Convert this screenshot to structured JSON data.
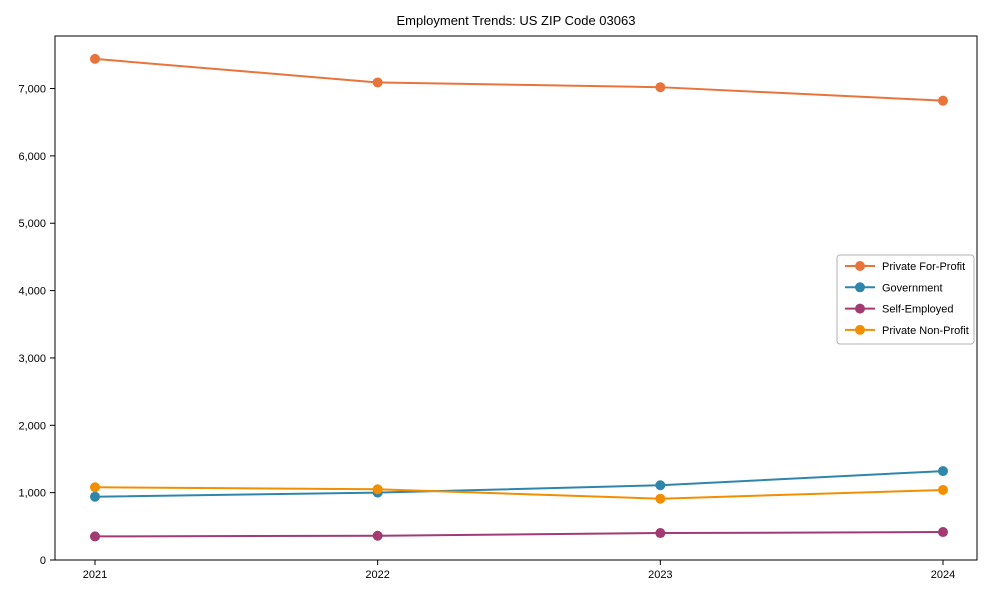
{
  "chart_data": {
    "type": "line",
    "title": "Employment Trends: US ZIP Code 03063",
    "xlabel": "",
    "ylabel": "",
    "x": [
      2021,
      2022,
      2023,
      2024
    ],
    "x_tick_labels": [
      "2021",
      "2022",
      "2023",
      "2024"
    ],
    "y_ticks": [
      0,
      1000,
      2000,
      3000,
      4000,
      5000,
      6000,
      7000
    ],
    "y_tick_labels": [
      "0",
      "1,000",
      "2,000",
      "3,000",
      "4,000",
      "5,000",
      "6,000",
      "7,000"
    ],
    "ylim": [
      0,
      7780
    ],
    "grid": false,
    "legend_position": "center-right",
    "marker": "circle",
    "series": [
      {
        "name": "Private For-Profit",
        "color": "#E8743B",
        "values": [
          7440,
          7090,
          7020,
          6820
        ]
      },
      {
        "name": "Government",
        "color": "#2E86AB",
        "values": [
          940,
          1000,
          1110,
          1320
        ]
      },
      {
        "name": "Self-Employed",
        "color": "#A23B72",
        "values": [
          350,
          360,
          400,
          415
        ]
      },
      {
        "name": "Private Non-Profit",
        "color": "#F18F01",
        "values": [
          1080,
          1050,
          910,
          1040
        ]
      }
    ]
  },
  "colors": {
    "axis": "#000000",
    "legend_border": "#b0b0b0",
    "background": "#ffffff"
  }
}
